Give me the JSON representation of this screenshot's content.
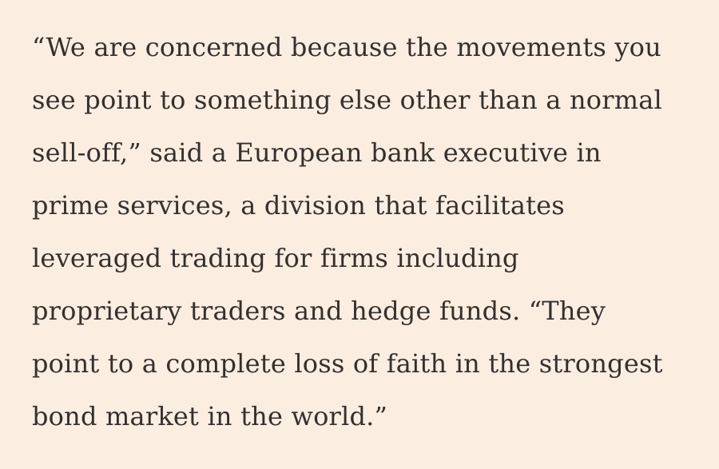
{
  "page": {
    "background_color": "#FCEDE1",
    "text_color": "#33302E"
  },
  "quote": {
    "full_text": "“We are concerned because the movements you see point to something else other than a normal sell-off,” said a European bank executive in prime services, a division that facilitates leveraged trading for firms including proprietary traders and hedge funds. “They point to a complete loss of faith in the strongest bond market in the world.”",
    "lines": [
      "“We are concerned because the movements you",
      "see point to something else other than a normal",
      "sell-off,” said a European bank executive in",
      "prime services, a division that facilitates",
      "leveraged trading for firms including",
      "proprietary traders and hedge funds. “They",
      "point to a complete loss of faith in the strongest",
      "bond market in the world.”"
    ]
  }
}
